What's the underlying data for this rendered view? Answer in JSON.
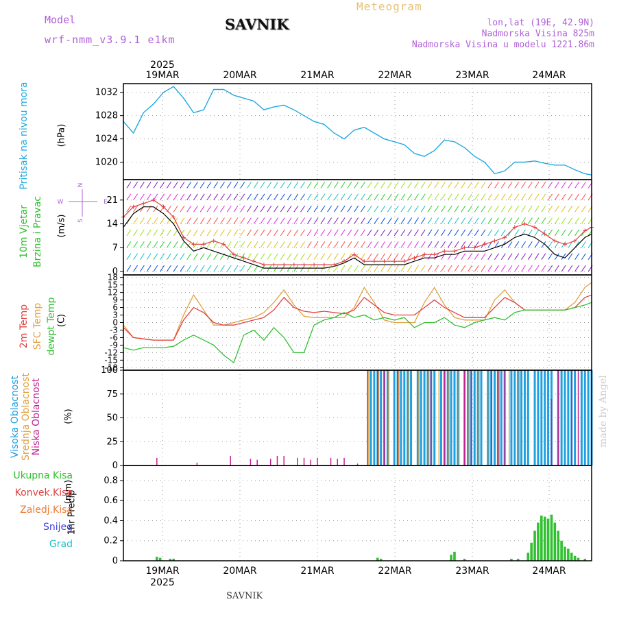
{
  "header": {
    "model_label": "Model",
    "model_name": "wrf-nmm_v3.9.1  e1km",
    "meteogram_label": "Meteogram",
    "station": "SAVNIK",
    "lonlat": "lon,lat (19E, 42.9N)",
    "elevation": "Nadmorska Visina 825m",
    "model_elevation": "Nadmorska Visina u modelu 1221.86m",
    "footer_station": "SAVNIK",
    "watermark": "made by Angel"
  },
  "colors": {
    "pressure": "#20a8e0",
    "wind_speed": "#000000",
    "gust": "#e04040",
    "temp2m": "#e04040",
    "sfc_temp": "#e0a040",
    "dewpt": "#30c030",
    "high_cloud": "#20a0e0",
    "mid_cloud": "#e0a040",
    "low_cloud": "#c02090",
    "total_precip": "#30c030"
  },
  "time_axis": {
    "year": "2025",
    "dates": [
      "19MAR",
      "20MAR",
      "21MAR",
      "22MAR",
      "23MAR",
      "24MAR"
    ]
  },
  "chart_data": [
    {
      "type": "line",
      "id": "pressure",
      "ylabel_1": "Pritisak na nivou mora",
      "ylabel_2": "(hPa)",
      "yticks": [
        "1020",
        "1024",
        "1028",
        "1032"
      ],
      "ylim": [
        1017,
        1033.5
      ],
      "x": [
        0,
        3,
        6,
        9,
        12,
        15,
        18,
        21,
        24,
        27,
        30,
        33,
        36,
        39,
        42,
        45,
        48,
        51,
        54,
        57,
        60,
        63,
        66,
        69,
        72,
        75,
        78,
        81,
        84,
        87,
        90,
        93,
        96,
        99,
        102,
        105,
        108,
        111,
        114,
        117,
        120,
        123,
        126,
        129,
        132,
        135,
        138,
        140
      ],
      "series": [
        {
          "values": [
            1027,
            1025,
            1028.5,
            1030,
            1032,
            1033,
            1031,
            1028.5,
            1029,
            1032.5,
            1032.5,
            1031.5,
            1031,
            1030.5,
            1029,
            1029.5,
            1029.8,
            1029,
            1028,
            1027,
            1026.5,
            1025,
            1024,
            1025.5,
            1026,
            1025,
            1024,
            1023.5,
            1023,
            1021.5,
            1021,
            1022,
            1023.8,
            1023.5,
            1022.5,
            1021,
            1020,
            1018,
            1018.5,
            1020,
            1020,
            1020.2,
            1019.8,
            1019.5,
            1019.5,
            1018.7,
            1018,
            1017.8
          ]
        }
      ]
    },
    {
      "type": "line",
      "id": "wind",
      "ylabel_1": "10m Vjetar",
      "ylabel_2": "Brzina i Pravac",
      "ylabel_3": "(m/s)",
      "compass": [
        "N",
        "W",
        "E",
        "S"
      ],
      "yticks": [
        "0",
        "7",
        "14",
        "21"
      ],
      "ylim": [
        -1,
        27
      ],
      "x": [
        0,
        3,
        6,
        9,
        12,
        15,
        18,
        21,
        24,
        27,
        30,
        33,
        36,
        39,
        42,
        45,
        48,
        51,
        54,
        57,
        60,
        63,
        66,
        69,
        72,
        75,
        78,
        81,
        84,
        87,
        90,
        93,
        96,
        99,
        102,
        105,
        108,
        111,
        114,
        117,
        120,
        123,
        126,
        129,
        132,
        135,
        138,
        140
      ],
      "series": [
        {
          "name": "speed",
          "values": [
            13,
            17,
            19,
            19,
            17,
            14,
            9,
            6,
            7,
            6,
            5,
            4,
            3,
            2,
            1,
            1,
            1,
            1,
            1,
            1,
            1,
            1.5,
            2.5,
            4,
            2,
            2,
            2,
            2,
            2,
            3,
            4,
            4,
            5,
            5,
            6,
            6,
            6,
            7,
            8,
            10,
            11,
            10,
            8,
            5,
            4,
            7,
            10,
            11
          ]
        },
        {
          "name": "gust",
          "values": [
            16,
            19,
            20,
            21,
            19,
            16,
            10,
            8,
            8,
            9,
            8,
            5,
            4,
            3,
            2,
            2,
            2,
            2,
            2,
            2,
            2,
            2,
            3,
            5,
            3,
            3,
            3,
            3,
            3,
            4,
            5,
            5,
            6,
            6,
            7,
            7,
            8,
            9,
            10,
            13,
            14,
            13,
            11,
            9,
            8,
            9,
            12,
            13
          ]
        }
      ]
    },
    {
      "type": "line",
      "id": "temperature",
      "ylabel_1": "2m Temp",
      "ylabel_2": "SFC Temp",
      "ylabel_3": "dewpt Temp",
      "ylabel_4": "(C)",
      "yticks": [
        "-18",
        "-15",
        "-12",
        "-9",
        "-6",
        "-3",
        "0",
        "3",
        "6",
        "9",
        "12",
        "15",
        "18"
      ],
      "ylim": [
        -19,
        19
      ],
      "x": [
        0,
        3,
        6,
        9,
        12,
        15,
        18,
        21,
        24,
        27,
        30,
        33,
        36,
        39,
        42,
        45,
        48,
        51,
        54,
        57,
        60,
        63,
        66,
        69,
        72,
        75,
        78,
        81,
        84,
        87,
        90,
        93,
        96,
        99,
        102,
        105,
        108,
        111,
        114,
        117,
        120,
        123,
        126,
        129,
        132,
        135,
        138,
        140
      ],
      "series": [
        {
          "name": "2m Temp",
          "values": [
            -2,
            -6,
            -6.5,
            -7,
            -7,
            -7,
            1,
            6,
            4,
            0,
            -1,
            -1,
            0,
            1,
            2,
            5,
            10,
            6,
            4.5,
            4,
            4.5,
            4,
            3.5,
            5,
            10,
            7,
            4,
            3,
            3,
            3,
            6,
            9,
            6,
            4,
            2,
            2,
            2,
            6,
            10,
            8,
            5,
            5,
            5,
            5,
            5,
            6,
            10,
            11
          ]
        },
        {
          "name": "SFC Temp",
          "values": [
            -1,
            -6,
            -6.5,
            -7,
            -7,
            -7,
            3,
            11,
            5,
            -1,
            -1,
            0,
            1,
            2,
            4,
            8,
            13,
            7,
            2.5,
            2,
            2,
            2,
            2,
            6,
            14,
            8,
            1,
            0,
            0,
            0,
            8,
            14,
            7,
            2,
            1,
            1,
            1,
            9,
            13,
            8,
            5,
            5,
            5,
            5,
            5,
            8,
            14,
            16
          ]
        },
        {
          "name": "dewpt Temp",
          "values": [
            -10,
            -11,
            -10,
            -10,
            -10,
            -9.5,
            -7,
            -5,
            -7,
            -9,
            -13,
            -16,
            -5,
            -3,
            -7,
            -2,
            -6,
            -12,
            -12,
            -1,
            1,
            2,
            4,
            2,
            3,
            1,
            2,
            1,
            2,
            -2,
            0,
            0,
            2,
            -1,
            -2,
            0,
            1,
            2,
            1,
            4,
            5,
            5,
            5,
            5,
            5,
            6,
            7,
            8
          ]
        }
      ]
    },
    {
      "type": "bar",
      "id": "cloud",
      "ylabel_1": "Visoka Oblacnost",
      "ylabel_2": "Srednja Oblacnost",
      "ylabel_3": "Niska Oblacnost",
      "ylabel_4": "(%)",
      "yticks": [
        "0",
        "25",
        "50",
        "75",
        "100"
      ],
      "ylim": [
        0,
        100
      ],
      "series": [
        {
          "name": "Visoka Oblacnost",
          "start_hour": 73,
          "end_hour": 140,
          "level": 100
        },
        {
          "name": "Srednja Oblacnost",
          "start_hour": 73,
          "end_hour": 118,
          "level": 100
        },
        {
          "name": "Niska Oblacnost",
          "hours": [
            10,
            22,
            32,
            38,
            40,
            44,
            46,
            48,
            52,
            54,
            56,
            58,
            62,
            64,
            66,
            70,
            73,
            76,
            78,
            82,
            92,
            96,
            102,
            104,
            110,
            112,
            114,
            128,
            130,
            134,
            136
          ],
          "values": [
            8,
            3,
            10,
            7,
            6,
            7,
            10,
            10,
            8,
            8,
            6,
            8,
            8,
            7,
            8,
            2,
            100,
            100,
            100,
            100,
            100,
            100,
            100,
            100,
            100,
            100,
            100,
            70,
            100,
            100,
            100
          ]
        }
      ]
    },
    {
      "type": "bar",
      "id": "precip",
      "legend": [
        "Ukupna Kisa",
        "Konvek.Kisa",
        "Zaledj.Kisa",
        "Snijeg",
        "Grad"
      ],
      "ylabel_1": "1hr Precip",
      "ylabel_2": "(mm)",
      "yticks": [
        "0",
        "0.2",
        "0.4",
        "0.6",
        "0.8"
      ],
      "ylim": [
        0,
        0.95
      ],
      "hours": [
        10,
        11,
        14,
        15,
        76,
        77,
        98,
        99,
        102,
        116,
        118,
        121,
        122,
        123,
        124,
        125,
        126,
        127,
        128,
        129,
        130,
        131,
        132,
        133,
        134,
        135,
        136,
        138
      ],
      "values": [
        0.04,
        0.03,
        0.02,
        0.02,
        0.03,
        0.02,
        0.06,
        0.09,
        0.02,
        0.02,
        0.02,
        0.08,
        0.18,
        0.3,
        0.38,
        0.45,
        0.44,
        0.42,
        0.46,
        0.38,
        0.3,
        0.2,
        0.14,
        0.12,
        0.08,
        0.05,
        0.03,
        0.02
      ]
    }
  ]
}
